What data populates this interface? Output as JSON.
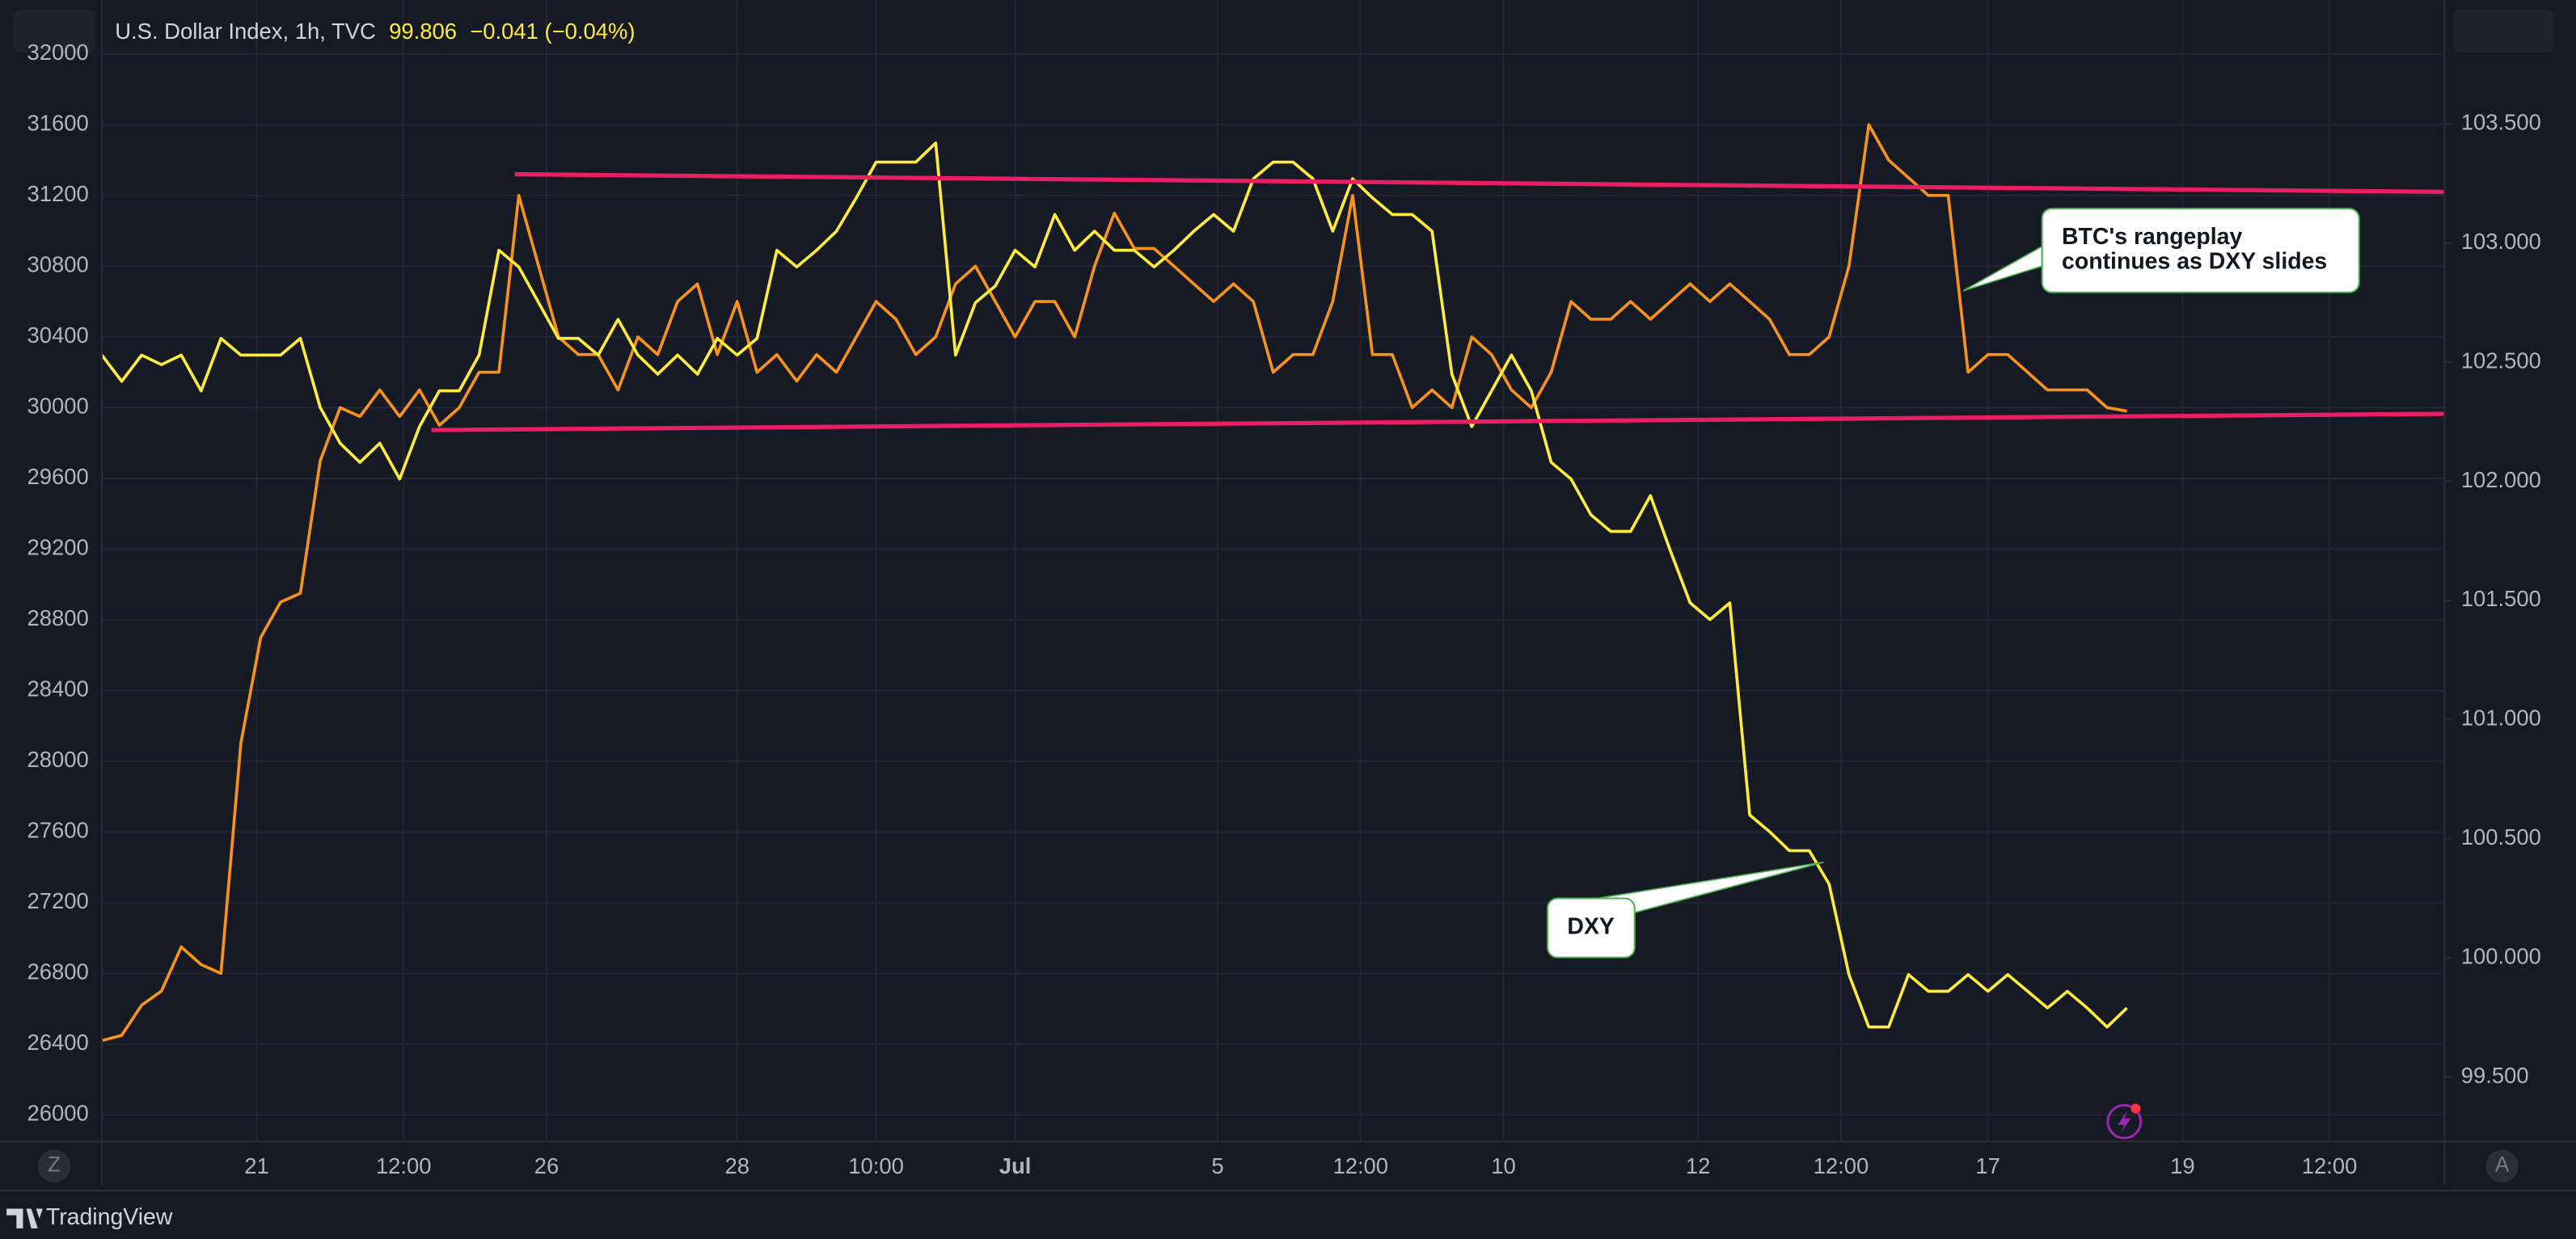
{
  "chart_data": {
    "type": "line",
    "header": {
      "title": "U.S. Dollar Index, 1h, TVC",
      "last": "99.806",
      "change": "−0.041 (−0.04%)"
    },
    "brand": "TradingView",
    "buttons": {
      "left": "Z",
      "right": "A"
    },
    "x": [
      0,
      5,
      10,
      15,
      20,
      25,
      30,
      35,
      40,
      45,
      50,
      55,
      60,
      65,
      70,
      75,
      80,
      85,
      90,
      95,
      100,
      105,
      110,
      115,
      120,
      125,
      130,
      135,
      140,
      145,
      150,
      155,
      160,
      165,
      170,
      175,
      180,
      185,
      190,
      195,
      200,
      205,
      210,
      215,
      220,
      225,
      230,
      235,
      240,
      245,
      250,
      255,
      260,
      265,
      270,
      275,
      280,
      285,
      290,
      295,
      300,
      305,
      310,
      315,
      320,
      325,
      330,
      335,
      340,
      345,
      350,
      355,
      360,
      365,
      370,
      375,
      380,
      385,
      390,
      395,
      400,
      405,
      410,
      415,
      420,
      425,
      430,
      435,
      440,
      445,
      450,
      455,
      460,
      465,
      470,
      475,
      480,
      485,
      490,
      495,
      500,
      505,
      510
    ],
    "series": [
      {
        "color": "#f7931a",
        "axis": "y",
        "values": [
          26420,
          26450,
          26620,
          26700,
          26950,
          26850,
          26800,
          28100,
          28700,
          28900,
          28950,
          29700,
          30000,
          29950,
          30100,
          29950,
          30100,
          29900,
          30000,
          30200,
          30200,
          31200,
          30800,
          30400,
          30300,
          30300,
          30100,
          30400,
          30300,
          30600,
          30700,
          30300,
          30600,
          30200,
          30300,
          30150,
          30300,
          30200,
          30400,
          30600,
          30500,
          30300,
          30400,
          30700,
          30800,
          30600,
          30400,
          30600,
          30600,
          30400,
          30800,
          31100,
          30900,
          30900,
          30800,
          30700,
          30600,
          30700,
          30600,
          30200,
          30300,
          30300,
          30600,
          31200,
          30300,
          30300,
          30000,
          30100,
          30000,
          30400,
          30300,
          30100,
          30000,
          30200,
          30600,
          30500,
          30500,
          30600,
          30500,
          30600,
          30700,
          30600,
          30700,
          30600,
          30500,
          30300,
          30300,
          30400,
          30800,
          31600,
          31400,
          31300,
          31200,
          31200,
          30200,
          30300,
          30300,
          30200,
          30100,
          30100,
          30100,
          30000,
          29980
        ]
      },
      {
        "name": "U.S. Dollar Index, 1h, TVC",
        "color": "#ffeb3b",
        "axis": "y2",
        "values": [
          102.53,
          102.42,
          102.53,
          102.49,
          102.53,
          102.38,
          102.6,
          102.53,
          102.53,
          102.53,
          102.6,
          102.31,
          102.16,
          102.08,
          102.16,
          102.01,
          102.23,
          102.38,
          102.38,
          102.53,
          102.97,
          102.9,
          102.75,
          102.6,
          102.6,
          102.53,
          102.68,
          102.53,
          102.45,
          102.53,
          102.45,
          102.6,
          102.53,
          102.6,
          102.97,
          102.9,
          102.97,
          103.05,
          103.19,
          103.34,
          103.34,
          103.34,
          103.42,
          102.53,
          102.75,
          102.82,
          102.97,
          102.9,
          103.12,
          102.97,
          103.05,
          102.97,
          102.97,
          102.9,
          102.97,
          103.05,
          103.12,
          103.05,
          103.27,
          103.34,
          103.34,
          103.27,
          103.05,
          103.27,
          103.19,
          103.12,
          103.12,
          103.05,
          102.45,
          102.23,
          102.38,
          102.53,
          102.38,
          102.08,
          102.01,
          101.86,
          101.79,
          101.79,
          101.94,
          101.71,
          101.49,
          101.42,
          101.49,
          100.6,
          100.53,
          100.45,
          100.45,
          100.31,
          99.93,
          99.71,
          99.71,
          99.93,
          99.86,
          99.86,
          99.93,
          99.86,
          99.93,
          99.86,
          99.79,
          99.86,
          99.79,
          99.71,
          99.79
        ]
      }
    ],
    "trendlines": [
      {
        "color": "#e91e63",
        "x": [
          104,
          590
        ],
        "values": [
          31320,
          31220
        ]
      },
      {
        "color": "#e91e63",
        "x": [
          83,
          590
        ],
        "values": [
          29873,
          29965
        ]
      }
    ],
    "annotations": [
      {
        "text": [
          "BTC's rangeplay",
          "continues as DXY slides"
        ]
      },
      {
        "text": [
          "DXY"
        ]
      }
    ],
    "xlim": [
      0,
      590
    ],
    "xticks": [
      {
        "value": 39,
        "label": "21"
      },
      {
        "value": 76,
        "label": "12:00"
      },
      {
        "value": 112,
        "label": "26"
      },
      {
        "value": 160,
        "label": "28"
      },
      {
        "value": 195,
        "label": "10:00"
      },
      {
        "value": 230,
        "label": "Jul"
      },
      {
        "value": 281,
        "label": "5"
      },
      {
        "value": 317,
        "label": "12:00"
      },
      {
        "value": 353,
        "label": "10"
      },
      {
        "value": 402,
        "label": "12"
      },
      {
        "value": 438,
        "label": "12:00"
      },
      {
        "value": 475,
        "label": "17"
      },
      {
        "value": 524,
        "label": "19"
      },
      {
        "value": 561,
        "label": "12:00"
      }
    ],
    "ylim": [
      25850,
      32305
    ],
    "yticks": [
      26000,
      26400,
      26800,
      27200,
      27600,
      28000,
      28400,
      28800,
      29200,
      29600,
      30000,
      30400,
      30800,
      31200,
      31600,
      32000
    ],
    "y2lim": [
      99.23,
      104.02
    ],
    "y2ticks": [
      {
        "value": 99.5,
        "label": "99.500"
      },
      {
        "value": 100,
        "label": "100.000"
      },
      {
        "value": 100.5,
        "label": "100.500"
      },
      {
        "value": 101,
        "label": "101.000"
      },
      {
        "value": 101.5,
        "label": "101.500"
      },
      {
        "value": 102,
        "label": "102.000"
      },
      {
        "value": 102.5,
        "label": "102.500"
      },
      {
        "value": 103,
        "label": "103.000"
      },
      {
        "value": 103.5,
        "label": "103.500"
      }
    ],
    "grid": true
  }
}
